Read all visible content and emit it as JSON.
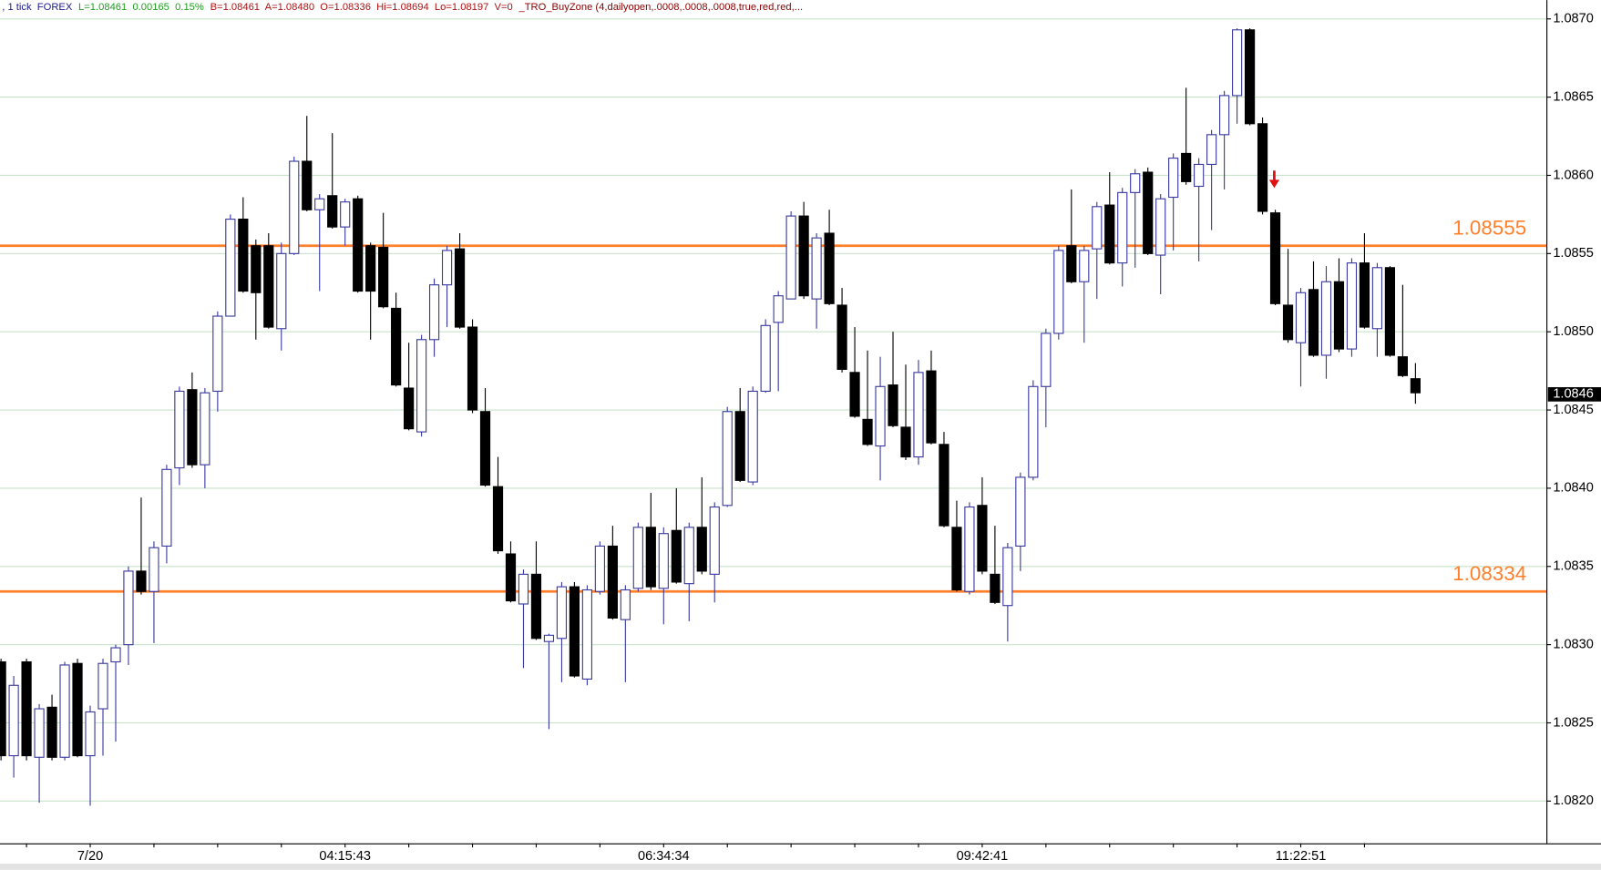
{
  "header": {
    "segments": [
      {
        "text": ", 1 tick  FOREX",
        "color": "#1a1a8c"
      },
      {
        "text": "L=1.08461  0.00165  0.15%",
        "color": "#1f9e1f"
      },
      {
        "text": "B=1.08461  A=1.08480  O=1.08336  Hi=1.08694  Lo=1.08197  V=0",
        "color": "#b01010"
      },
      {
        "text": "_TRO_BuyZone (4,dailyopen,.0008,.0008,.0008,true,red,red,...",
        "color": "#8b0000"
      }
    ]
  },
  "chart_data": {
    "type": "candlestick",
    "categories": [
      null,
      null,
      null,
      null,
      null,
      null,
      null,
      "7/20",
      null,
      null,
      null,
      null,
      null,
      null,
      null,
      null,
      null,
      null,
      null,
      null,
      null,
      null,
      null,
      null,
      null,
      null,
      null,
      "04:15:43",
      null,
      null,
      null,
      null,
      null,
      null,
      null,
      null,
      null,
      null,
      null,
      null,
      null,
      null,
      null,
      null,
      null,
      null,
      null,
      null,
      null,
      null,
      null,
      null,
      "06:34:34",
      null,
      null,
      null,
      null,
      null,
      null,
      null,
      null,
      null,
      null,
      null,
      null,
      null,
      null,
      null,
      null,
      null,
      null,
      null,
      null,
      null,
      null,
      null,
      null,
      "09:42:41",
      null,
      null,
      null,
      null,
      null,
      null,
      null,
      null,
      null,
      null,
      null,
      null,
      null,
      null,
      null,
      null,
      null,
      null,
      null,
      null,
      null,
      null,
      null,
      null,
      "11:22:51",
      null,
      null,
      null,
      null,
      null,
      null,
      null,
      null,
      null
    ],
    "open": [
      1.08289,
      1.08229,
      1.08289,
      1.08228,
      1.0826,
      1.08228,
      1.08288,
      1.08229,
      1.08259,
      1.08289,
      1.083,
      1.08347,
      1.08334,
      1.08363,
      1.08413,
      1.08463,
      1.08415,
      1.08462,
      1.0851,
      1.08572,
      1.08555,
      1.08555,
      1.08502,
      1.0855,
      1.08609,
      1.08578,
      1.08587,
      1.08567,
      1.08585,
      1.08555,
      1.08554,
      1.08515,
      1.08464,
      1.08436,
      1.08495,
      1.0853,
      1.08553,
      1.08503,
      1.08449,
      1.08401,
      1.08358,
      1.08326,
      1.08345,
      1.08302,
      1.08304,
      1.08337,
      1.08278,
      1.08334,
      1.08363,
      1.08316,
      1.08336,
      1.08375,
      1.08336,
      1.08373,
      1.08339,
      1.08375,
      1.08345,
      1.08389,
      1.08449,
      1.08404,
      1.08462,
      1.08506,
      1.08521,
      1.08574,
      1.08521,
      1.08563,
      1.08517,
      1.08474,
      1.08444,
      1.08427,
      1.08466,
      1.08439,
      1.0842,
      1.08475,
      1.08428,
      1.08375,
      1.08334,
      1.08389,
      1.08345,
      1.08325,
      1.08363,
      1.08407,
      1.08465,
      1.08499,
      1.08555,
      1.08532,
      1.08553,
      1.08581,
      1.08544,
      1.08589,
      1.08602,
      1.08549,
      1.08586,
      1.08614,
      1.08593,
      1.08607,
      1.08626,
      1.08651,
      1.08693,
      1.08633,
      1.08576,
      1.08517,
      1.08493,
      1.08527,
      1.08485,
      1.08532,
      1.08489,
      1.08544,
      1.08502,
      1.08541,
      1.08484,
      1.0847
    ],
    "high": [
      1.08291,
      1.0828,
      1.08291,
      1.08262,
      1.08268,
      1.08289,
      1.08291,
      1.08261,
      1.08291,
      1.083,
      1.0835,
      1.08394,
      1.08366,
      1.08415,
      1.08465,
      1.08474,
      1.08464,
      1.08513,
      1.08575,
      1.08586,
      1.08559,
      1.08563,
      1.08557,
      1.08612,
      1.08638,
      1.08588,
      1.08627,
      1.08585,
      1.08587,
      1.08557,
      1.08576,
      1.08525,
      1.08493,
      1.08498,
      1.08534,
      1.08555,
      1.08563,
      1.08508,
      1.08464,
      1.0842,
      1.08366,
      1.08348,
      1.08366,
      1.08307,
      1.0834,
      1.0834,
      1.08338,
      1.08366,
      1.08376,
      1.08338,
      1.08378,
      1.08397,
      1.08375,
      1.084,
      1.08378,
      1.08407,
      1.08391,
      1.08452,
      1.08464,
      1.08465,
      1.08508,
      1.08526,
      1.08577,
      1.08583,
      1.08563,
      1.08578,
      1.08528,
      1.08503,
      1.08488,
      1.08484,
      1.085,
      1.08479,
      1.08482,
      1.08488,
      1.08436,
      1.08392,
      1.08391,
      1.08407,
      1.08376,
      1.08365,
      1.0841,
      1.08469,
      1.08502,
      1.08555,
      1.08591,
      1.08555,
      1.08583,
      1.08602,
      1.08592,
      1.08604,
      1.08605,
      1.08588,
      1.08614,
      1.08656,
      1.08611,
      1.08629,
      1.08654,
      1.08694,
      1.08694,
      1.08637,
      1.08578,
      1.08553,
      1.08528,
      1.08545,
      1.08542,
      1.08547,
      1.08547,
      1.08563,
      1.08544,
      1.08542,
      1.0853,
      1.0848
    ],
    "low": [
      1.08226,
      1.08215,
      1.08226,
      1.08199,
      1.08226,
      1.08226,
      1.08228,
      1.08197,
      1.08229,
      1.08238,
      1.08287,
      1.08332,
      1.08301,
      1.08352,
      1.08402,
      1.08413,
      1.084,
      1.08449,
      1.08512,
      1.08525,
      1.08495,
      1.08502,
      1.08488,
      1.08549,
      1.08577,
      1.08526,
      1.08566,
      1.08555,
      1.08525,
      1.08495,
      1.08515,
      1.08465,
      1.08437,
      1.08433,
      1.08484,
      1.08503,
      1.08502,
      1.08448,
      1.08401,
      1.08358,
      1.08327,
      1.08285,
      1.08303,
      1.08246,
      1.08276,
      1.08279,
      1.08274,
      1.08332,
      1.08316,
      1.08276,
      1.08334,
      1.08335,
      1.08313,
      1.08339,
      1.08315,
      1.08345,
      1.08327,
      1.08388,
      1.08404,
      1.08402,
      1.08461,
      1.08462,
      1.08521,
      1.08521,
      1.08502,
      1.08517,
      1.08474,
      1.08445,
      1.08427,
      1.08405,
      1.08439,
      1.08418,
      1.08415,
      1.08428,
      1.08375,
      1.08334,
      1.08332,
      1.08345,
      1.08326,
      1.08302,
      1.08347,
      1.08405,
      1.08439,
      1.08495,
      1.08531,
      1.08493,
      1.08521,
      1.08543,
      1.08529,
      1.08541,
      1.08549,
      1.08524,
      1.08552,
      1.08594,
      1.08545,
      1.08565,
      1.08591,
      1.08633,
      1.08632,
      1.08575,
      1.08517,
      1.08493,
      1.08465,
      1.08484,
      1.0847,
      1.08487,
      1.08484,
      1.08502,
      1.08484,
      1.08484,
      1.08471,
      1.08454
    ],
    "close": [
      1.08229,
      1.08274,
      1.08229,
      1.08259,
      1.08228,
      1.08287,
      1.08229,
      1.08257,
      1.08288,
      1.08298,
      1.08347,
      1.08334,
      1.08362,
      1.08412,
      1.08462,
      1.08415,
      1.08461,
      1.0851,
      1.08572,
      1.08526,
      1.08525,
      1.08503,
      1.0855,
      1.08609,
      1.08578,
      1.08585,
      1.08567,
      1.08583,
      1.08526,
      1.08526,
      1.08516,
      1.08466,
      1.08438,
      1.08495,
      1.0853,
      1.08552,
      1.08503,
      1.0845,
      1.08402,
      1.0836,
      1.08328,
      1.08345,
      1.08304,
      1.08306,
      1.08337,
      1.0828,
      1.08335,
      1.08363,
      1.08317,
      1.08335,
      1.08375,
      1.08337,
      1.08371,
      1.0834,
      1.08375,
      1.08347,
      1.08388,
      1.08449,
      1.08405,
      1.08462,
      1.08504,
      1.08523,
      1.08574,
      1.08523,
      1.0856,
      1.08518,
      1.08476,
      1.08446,
      1.08428,
      1.08465,
      1.0844,
      1.0842,
      1.08474,
      1.08429,
      1.08376,
      1.08335,
      1.08388,
      1.08347,
      1.08327,
      1.08362,
      1.08407,
      1.08465,
      1.08499,
      1.08552,
      1.08532,
      1.08552,
      1.0858,
      1.08544,
      1.08589,
      1.08601,
      1.0855,
      1.08585,
      1.08611,
      1.08596,
      1.08607,
      1.08626,
      1.08651,
      1.08693,
      1.08633,
      1.08577,
      1.08518,
      1.08495,
      1.08525,
      1.08485,
      1.08532,
      1.08489,
      1.08544,
      1.08503,
      1.08541,
      1.08485,
      1.08472,
      1.08461
    ],
    "up_color": "#3a3aa0",
    "down_color": "#000000",
    "ylim": [
      1.08173,
      1.08712
    ],
    "yticks": [
      {
        "value": 1.082,
        "label": "1.0820"
      },
      1.0825,
      {
        "value": 1.083,
        "label": "1.0830"
      },
      1.0835,
      {
        "value": 1.084,
        "label": "1.0840"
      },
      1.0845,
      {
        "value": 1.085,
        "label": "1.0850"
      },
      1.0855,
      {
        "value": 1.086,
        "label": "1.0860"
      },
      1.0865,
      {
        "value": 1.087,
        "label": "1.0870"
      }
    ],
    "grid": true,
    "grid_color": "#c9e3c9",
    "levels": [
      1.08555,
      1.08334
    ],
    "level_color": "#ff7f2a",
    "last_price": 1.0846
  }
}
